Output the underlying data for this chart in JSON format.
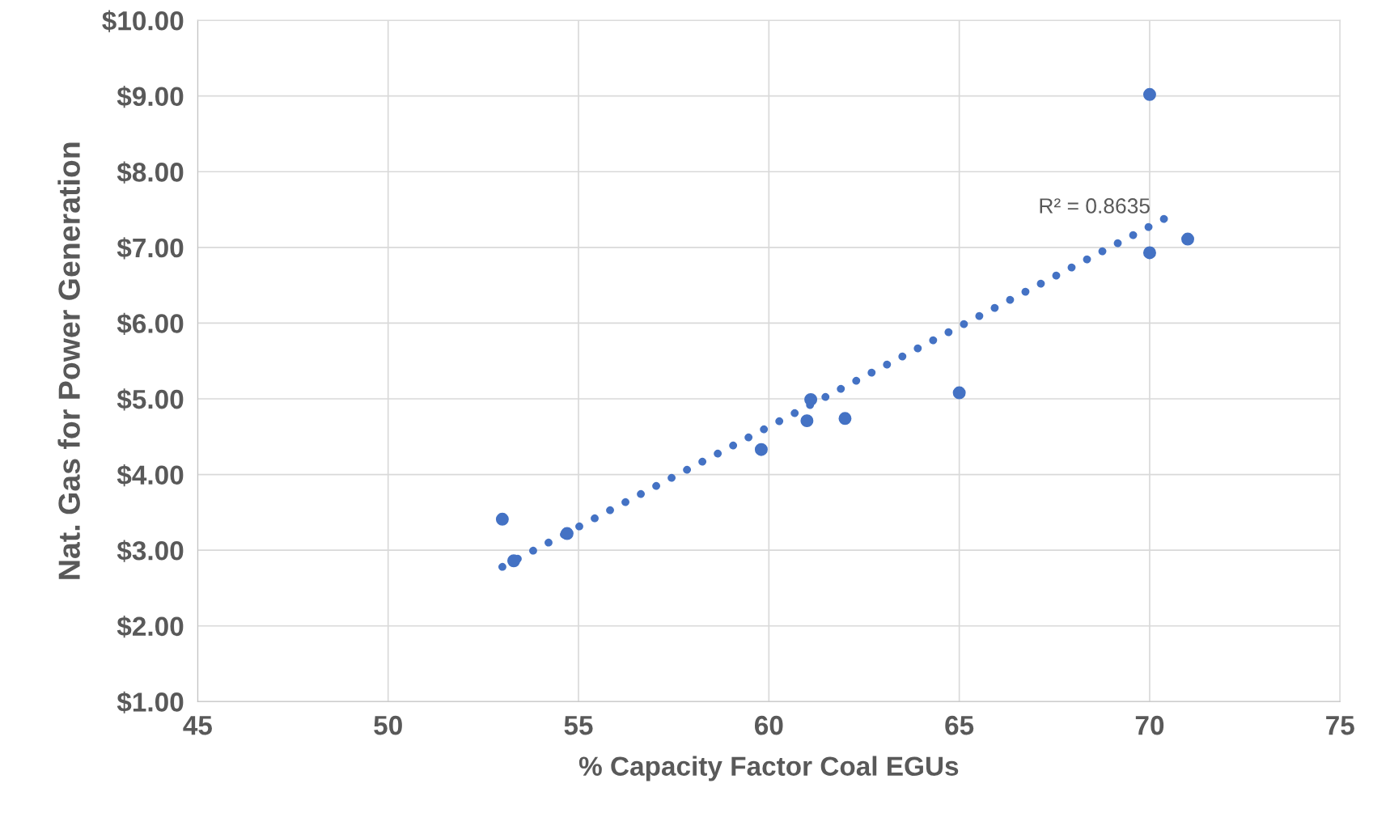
{
  "chart_data": {
    "type": "scatter",
    "xlabel": "% Capacity Factor Coal EGUs",
    "ylabel": "Nat. Gas for Power Generation",
    "xlim": [
      45,
      75
    ],
    "xticks": [
      45,
      50,
      55,
      60,
      65,
      70,
      75
    ],
    "ylim": [
      1,
      10
    ],
    "yticks": [
      {
        "value": 1,
        "label": "$1.00"
      },
      {
        "value": 2,
        "label": "$2.00"
      },
      {
        "value": 3,
        "label": "$3.00"
      },
      {
        "value": 4,
        "label": "$4.00"
      },
      {
        "value": 5,
        "label": "$5.00"
      },
      {
        "value": 6,
        "label": "$6.00"
      },
      {
        "value": 7,
        "label": "$7.00"
      },
      {
        "value": 8,
        "label": "$8.00"
      },
      {
        "value": 9,
        "label": "$9.00"
      },
      {
        "value": 10,
        "label": "$10.00"
      }
    ],
    "grid": true,
    "series": [
      {
        "marker": "circle",
        "color": "#4472c4",
        "x": [
          53.0,
          53.3,
          54.7,
          59.8,
          61.0,
          61.1,
          62.0,
          65.0,
          70.0,
          70.0,
          71.0
        ],
        "values": [
          3.41,
          2.86,
          3.22,
          4.33,
          4.71,
          4.99,
          4.74,
          5.08,
          6.93,
          9.02,
          7.11
        ]
      },
      {
        "type": "line",
        "color": "#4472c4",
        "line_style": "dotted",
        "x": [
          53.0,
          70.5
        ],
        "values": [
          2.78,
          7.41
        ]
      }
    ],
    "annotations": [
      "R² = 0.8635"
    ]
  }
}
